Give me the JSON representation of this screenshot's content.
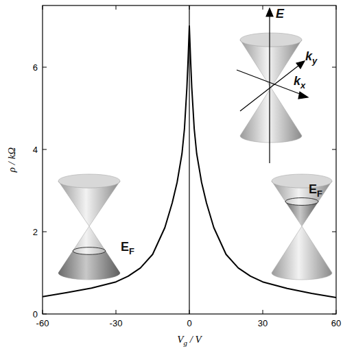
{
  "chart_data": {
    "type": "line",
    "ylabel": "ρ / kΩ",
    "xlabel": {
      "text": "V",
      "sub": "g",
      "rest": " / V"
    },
    "x": [
      -60,
      -50,
      -40,
      -30,
      -25,
      -20,
      -15,
      -10,
      -7,
      -5,
      -3,
      -2,
      -1,
      -0.5,
      0,
      0.5,
      1,
      2,
      3,
      5,
      7,
      10,
      15,
      20,
      25,
      30,
      40,
      50,
      60
    ],
    "series": [
      {
        "color": "#000000",
        "values": [
          0.42,
          0.52,
          0.63,
          0.78,
          0.92,
          1.12,
          1.45,
          2.1,
          2.7,
          3.2,
          3.9,
          4.5,
          5.5,
          6.2,
          7.0,
          6.2,
          5.5,
          4.5,
          3.9,
          3.2,
          2.7,
          2.1,
          1.45,
          1.12,
          0.92,
          0.78,
          0.62,
          0.5,
          0.4
        ]
      }
    ],
    "xlim": [
      -60,
      60
    ],
    "ylim": [
      0,
      7.5
    ],
    "xticks": [
      -60,
      -30,
      0,
      30,
      60
    ],
    "yticks": [
      0,
      2,
      4,
      6
    ],
    "vline": 0,
    "annotations": [
      {
        "text": "E"
      },
      {
        "text": "k",
        "sub": "y"
      },
      {
        "text": "k",
        "sub": "x"
      },
      {
        "text": "E",
        "sub": "F"
      },
      {
        "text": "E",
        "sub": "F"
      }
    ]
  }
}
